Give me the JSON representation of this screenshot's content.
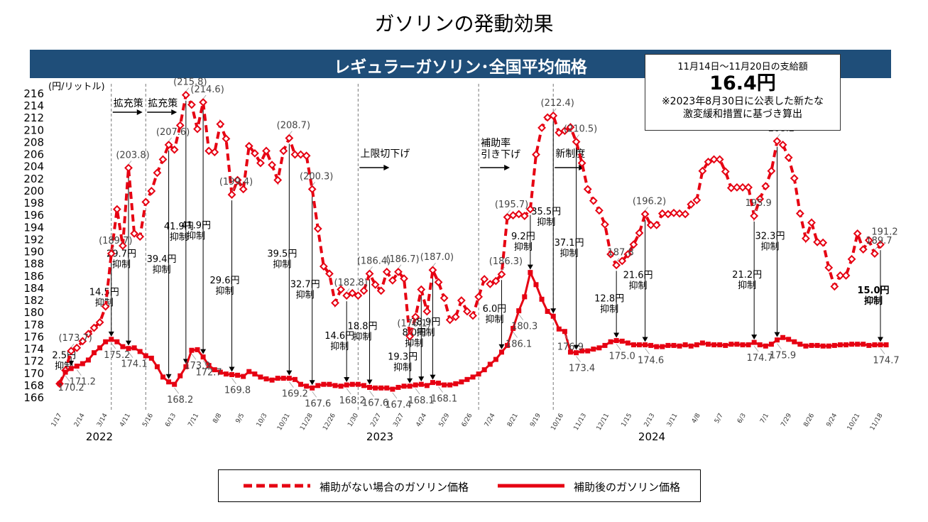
{
  "page": {
    "title": "ガソリンの発動効果",
    "banner": "レギュラーガソリン･全国平均価格",
    "info_box": {
      "period": "11月14日～11月20日の支給額",
      "amount": "16.4円",
      "note_line1": "※2023年8月30日に公表した新たな",
      "note_line2": "激変緩和措置に基づき算出"
    }
  },
  "colors": {
    "series": "#e60012",
    "banner": "#1f4e79"
  },
  "chart_data": {
    "type": "line",
    "title": "",
    "ylabel": "(円/リットル)",
    "ylim": [
      166,
      216
    ],
    "ytick_step": 2,
    "x_ticks": [
      "1/17",
      "2/14",
      "3/14",
      "4/11",
      "5/16",
      "6/13",
      "7/11",
      "8/8",
      "9/5",
      "10/3",
      "10/31",
      "11/28",
      "12/26",
      "1/30",
      "2/27",
      "3/27",
      "4/24",
      "5/29",
      "6/26",
      "7/24",
      "8/21",
      "9/19",
      "10/16",
      "11/13",
      "12/11",
      "1/15",
      "2/13",
      "3/11",
      "4/8",
      "5/7",
      "6/3",
      "7/1",
      "7/29",
      "8/26",
      "9/24",
      "10/21",
      "11/18"
    ],
    "year_labels": [
      "2022",
      "2023",
      "2024"
    ],
    "series": [
      {
        "name": "補助がない場合のガソリン価格",
        "style": "dashed",
        "values": [
          168.3,
          170.5,
          173.7,
          174.2,
          175.3,
          176.5,
          177.5,
          178.4,
          181,
          189.7,
          197,
          191,
          203.8,
          193,
          192.5,
          198.2,
          200,
          203,
          205.2,
          207.6,
          206.8,
          210.8,
          215.8,
          214.2,
          210.2,
          214.6,
          206.6,
          206.4,
          211,
          208.6,
          199.4,
          201.8,
          200.3,
          207.4,
          206.2,
          204.6,
          206.6,
          204.3,
          201.8,
          206.6,
          208.7,
          206,
          206,
          205.8,
          200.3,
          193.8,
          187.6,
          186.4,
          181.6,
          183.8,
          182.8,
          183.2,
          182.8,
          183.6,
          186.4,
          184.6,
          183.6,
          186.7,
          185.3,
          186.7,
          185.6,
          176.1,
          179.3,
          183.8,
          180.2,
          187,
          185,
          182.4,
          178.8,
          179.3,
          182,
          180.2,
          179.5,
          182.6,
          185.5,
          184.7,
          185.2,
          186.3,
          195.7,
          196,
          196.2,
          195.9,
          197,
          206,
          210.4,
          212.1,
          212.4,
          209.6,
          209.9,
          210.5,
          208.1,
          204.6,
          200.3,
          198.4,
          196.8,
          194.5,
          189.6,
          187.8,
          188.5,
          189.6,
          191.2,
          193.1,
          196.2,
          194.4,
          194.4,
          196.3,
          196.2,
          196.4,
          196.3,
          196.2,
          197.8,
          198.5,
          203.3,
          204.8,
          205.2,
          205.2,
          203.2,
          200.5,
          200.6,
          200.6,
          200.6,
          195.9,
          198.7,
          200.8,
          203.3,
          208.2,
          207.6,
          205.5,
          202.1,
          196.3,
          192.2,
          194.8,
          191.6,
          191.5,
          187.4,
          184.3,
          186.1,
          186.1,
          188.8,
          193,
          190.4,
          191.9,
          189.7,
          191.2
        ]
      },
      {
        "name": "補助後のガソリン価格",
        "style": "solid",
        "values": [
          168.3,
          170.2,
          170.8,
          171.2,
          171.6,
          172.2,
          173.4,
          174.2,
          175.2,
          175.6,
          175.2,
          174.4,
          174.1,
          174.2,
          173.6,
          172.9,
          172.5,
          171.1,
          169.4,
          168.6,
          168.2,
          169.6,
          171.1,
          173.8,
          173.9,
          172.7,
          171.3,
          170.6,
          170.2,
          169.9,
          169.8,
          169.7,
          169.5,
          170.3,
          169.9,
          169.4,
          169.1,
          168.9,
          169.2,
          169.2,
          169.2,
          169,
          168.2,
          167.9,
          167.6,
          168,
          168.2,
          168.2,
          168,
          167.9,
          168.1,
          168.2,
          168.2,
          168,
          167.7,
          167.6,
          167.6,
          167.6,
          167.4,
          167.7,
          167.9,
          167.9,
          168.1,
          168.2,
          168,
          168.5,
          168.4,
          168.1,
          168.1,
          168.3,
          168.6,
          169,
          169.4,
          169.9,
          170.6,
          171.5,
          172.3,
          173.5,
          174.6,
          177.4,
          180.3,
          182.6,
          186.6,
          184.6,
          182.2,
          180.2,
          179.4,
          177.3,
          176.9,
          173.5,
          173.4,
          173.7,
          173.7,
          174,
          174.2,
          174.6,
          175.2,
          175.4,
          175.3,
          175,
          174.7,
          174.7,
          174.7,
          174.6,
          174.4,
          174.4,
          174.6,
          174.6,
          174.5,
          174.7,
          174.5,
          174.7,
          175,
          174.8,
          174.7,
          174.7,
          174.6,
          174.8,
          174.8,
          174.7,
          174.7,
          175.1,
          174.7,
          174.5,
          174.8,
          175.5,
          175.9,
          175.6,
          175.2,
          174.8,
          174.5,
          174.6,
          174.6,
          174.5,
          174.5,
          174.6,
          174.7,
          174.7,
          174.8,
          174.8,
          174.8,
          174.6,
          174.7,
          174.7,
          174.7
        ]
      }
    ],
    "phase_labels": [
      {
        "text": "拡充策",
        "index": 9
      },
      {
        "text": "拡充策",
        "index": 15
      },
      {
        "text": "上限切下げ",
        "index": 52
      },
      {
        "text": "補助率\n引き下げ",
        "index": 73
      },
      {
        "text": "新制度",
        "index": 86
      }
    ],
    "subsidy_arrows": [
      {
        "index": 2,
        "label": "2.5円\n抑制"
      },
      {
        "index": 9,
        "label": "14.5円\n抑制"
      },
      {
        "index": 12,
        "label": "29.7円\n抑制"
      },
      {
        "index": 19,
        "label": "39.4円\n抑制"
      },
      {
        "index": 22,
        "label": "41.9円\n抑制"
      },
      {
        "index": 25,
        "label": "41.9円\n抑制"
      },
      {
        "index": 30,
        "label": "29.6円\n抑制"
      },
      {
        "index": 40,
        "label": "39.5円\n抑制"
      },
      {
        "index": 44,
        "label": "32.7円\n抑制"
      },
      {
        "index": 50,
        "label": "14.6円\n抑制"
      },
      {
        "index": 54,
        "label": "18.8円\n抑制"
      },
      {
        "index": 61,
        "label": "19.3円\n抑制"
      },
      {
        "index": 63,
        "label": "8.0円\n抑制"
      },
      {
        "index": 65,
        "label": "18.9円\n抑制"
      },
      {
        "index": 77,
        "label": "6.0円\n抑制"
      },
      {
        "index": 82,
        "label": "9.2円\n抑制"
      },
      {
        "index": 86,
        "label": "35.5円\n抑制"
      },
      {
        "index": 90,
        "label": "37.1円\n抑制"
      },
      {
        "index": 97,
        "label": "12.8円\n抑制"
      },
      {
        "index": 102,
        "label": "21.6円\n抑制"
      },
      {
        "index": 121,
        "label": "21.2円\n抑制"
      },
      {
        "index": 125,
        "label": "32.3円\n抑制"
      },
      {
        "index": 143,
        "label": "15.0円\n抑制"
      }
    ],
    "annotations_top": [
      {
        "index": 2,
        "text": "(173.7)"
      },
      {
        "index": 9,
        "text": "(189.7)"
      },
      {
        "index": 12,
        "text": "(203.8)"
      },
      {
        "index": 19,
        "text": "(207.6)"
      },
      {
        "index": 22,
        "text": "(215.8)"
      },
      {
        "index": 25,
        "text": "(214.6)"
      },
      {
        "index": 30,
        "text": "(199.4)"
      },
      {
        "index": 40,
        "text": "(208.7)"
      },
      {
        "index": 44,
        "text": "(200.3)"
      },
      {
        "index": 50,
        "text": "(182.8)"
      },
      {
        "index": 54,
        "text": "(186.4)"
      },
      {
        "index": 59,
        "text": "(186.7)"
      },
      {
        "index": 61,
        "text": "(176.1)"
      },
      {
        "index": 65,
        "text": "(187.0)"
      },
      {
        "index": 77,
        "text": "(186.3)"
      },
      {
        "index": 78,
        "text": "(195.7)"
      },
      {
        "index": 86,
        "text": "(212.4)"
      },
      {
        "index": 90,
        "text": "(210.5)"
      },
      {
        "index": 97,
        "text": "187.8"
      },
      {
        "index": 102,
        "text": "(196.2)"
      },
      {
        "index": 121,
        "text": "195.9"
      },
      {
        "index": 125,
        "text": "208.2"
      },
      {
        "index": 142,
        "text": "189.7"
      },
      {
        "index": 143,
        "text": "191.2"
      }
    ],
    "annotations_bottom": [
      {
        "index": 1,
        "text": "170.2"
      },
      {
        "index": 3,
        "text": "171.2"
      },
      {
        "index": 9,
        "text": "175.2"
      },
      {
        "index": 12,
        "text": "174.1"
      },
      {
        "index": 20,
        "text": "168.2"
      },
      {
        "index": 23,
        "text": "173.9"
      },
      {
        "index": 25,
        "text": "172.7"
      },
      {
        "index": 30,
        "text": "169.8"
      },
      {
        "index": 40,
        "text": "169.2"
      },
      {
        "index": 44,
        "text": "167.6"
      },
      {
        "index": 50,
        "text": "168.2"
      },
      {
        "index": 54,
        "text": "167.6"
      },
      {
        "index": 58,
        "text": "167.4"
      },
      {
        "index": 62,
        "text": "168.1"
      },
      {
        "index": 66,
        "text": "168.1"
      },
      {
        "index": 79,
        "text": "186.1"
      },
      {
        "index": 80,
        "text": "180.3"
      },
      {
        "index": 88,
        "text": "176.9"
      },
      {
        "index": 90,
        "text": "173.4"
      },
      {
        "index": 97,
        "text": "175.0"
      },
      {
        "index": 102,
        "text": "174.6"
      },
      {
        "index": 121,
        "text": "174.7"
      },
      {
        "index": 125,
        "text": "175.9"
      },
      {
        "index": 143,
        "text": "174.7"
      }
    ],
    "legend_position": "bottom"
  }
}
